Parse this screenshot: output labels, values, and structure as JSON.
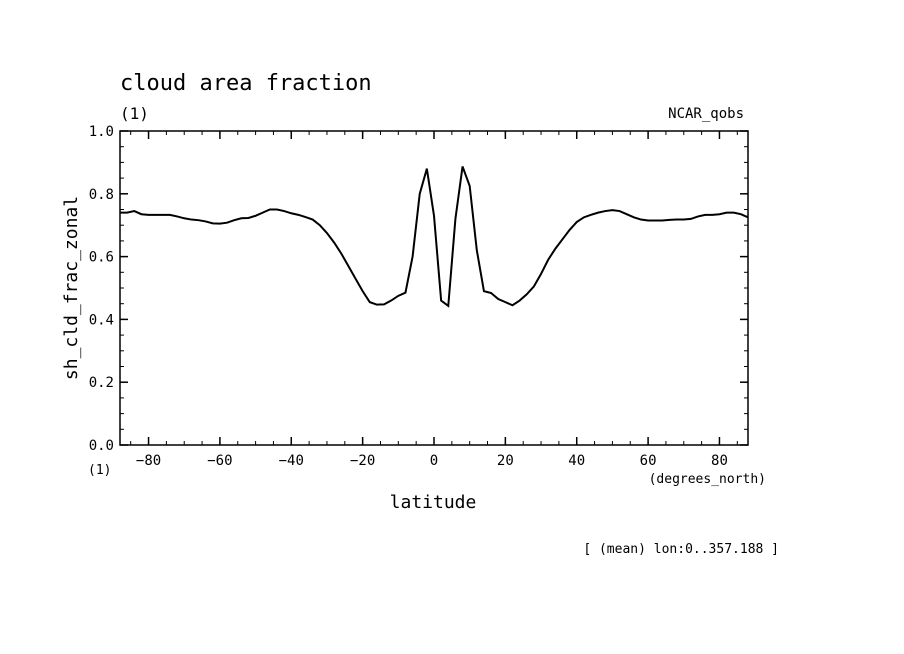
{
  "chart_data": {
    "type": "line",
    "title": "cloud area fraction",
    "units_label": "(1)",
    "source_label": "NCAR_qobs",
    "ylabel": "sh_cld_frac_zonal",
    "y_units_label": "(1)",
    "xlabel": "latitude",
    "x_units_label": "(degrees_north)",
    "footnote": "[ (mean) lon:0..357.188 ]",
    "xlim": [
      -88,
      88
    ],
    "ylim": [
      0.0,
      1.0
    ],
    "x_ticks": [
      -80,
      -60,
      -40,
      -20,
      0,
      20,
      40,
      60,
      80
    ],
    "x_tick_labels": [
      "−80",
      "−60",
      "−40",
      "−20",
      "0",
      "20",
      "40",
      "60",
      "80"
    ],
    "y_ticks": [
      0.0,
      0.2,
      0.4,
      0.6,
      0.8,
      1.0
    ],
    "y_tick_labels": [
      "0.0",
      "0.2",
      "0.4",
      "0.6",
      "0.8",
      "1.0"
    ],
    "grid": false,
    "line_color": "#000000",
    "series": [
      {
        "x": [
          -88,
          -86,
          -84,
          -82,
          -80,
          -78,
          -76,
          -74,
          -72,
          -70,
          -68,
          -66,
          -64,
          -62,
          -60,
          -58,
          -56,
          -54,
          -52,
          -50,
          -48,
          -46,
          -44,
          -42,
          -40,
          -38,
          -36,
          -34,
          -32,
          -30,
          -28,
          -26,
          -24,
          -22,
          -20,
          -18,
          -16,
          -14,
          -12,
          -10,
          -8,
          -6,
          -4,
          -2,
          0,
          2,
          4,
          6,
          8,
          10,
          12,
          14,
          16,
          18,
          20,
          22,
          24,
          26,
          28,
          30,
          32,
          34,
          36,
          38,
          40,
          42,
          44,
          46,
          48,
          50,
          52,
          54,
          56,
          58,
          60,
          62,
          64,
          66,
          68,
          70,
          72,
          74,
          76,
          78,
          80,
          82,
          84,
          86,
          88
        ],
        "values": [
          0.74,
          0.74,
          0.745,
          0.735,
          0.733,
          0.733,
          0.733,
          0.733,
          0.728,
          0.722,
          0.718,
          0.716,
          0.712,
          0.706,
          0.705,
          0.708,
          0.716,
          0.722,
          0.723,
          0.73,
          0.74,
          0.75,
          0.75,
          0.745,
          0.738,
          0.733,
          0.726,
          0.718,
          0.7,
          0.675,
          0.645,
          0.61,
          0.57,
          0.53,
          0.49,
          0.455,
          0.447,
          0.448,
          0.46,
          0.475,
          0.485,
          0.6,
          0.8,
          0.88,
          0.73,
          0.46,
          0.443,
          0.72,
          0.887,
          0.825,
          0.62,
          0.49,
          0.484,
          0.465,
          0.455,
          0.445,
          0.46,
          0.48,
          0.505,
          0.545,
          0.59,
          0.625,
          0.655,
          0.685,
          0.71,
          0.725,
          0.733,
          0.74,
          0.745,
          0.748,
          0.745,
          0.735,
          0.725,
          0.718,
          0.715,
          0.715,
          0.715,
          0.717,
          0.718,
          0.718,
          0.72,
          0.728,
          0.733,
          0.733,
          0.735,
          0.74,
          0.74,
          0.735,
          0.725
        ]
      }
    ]
  }
}
